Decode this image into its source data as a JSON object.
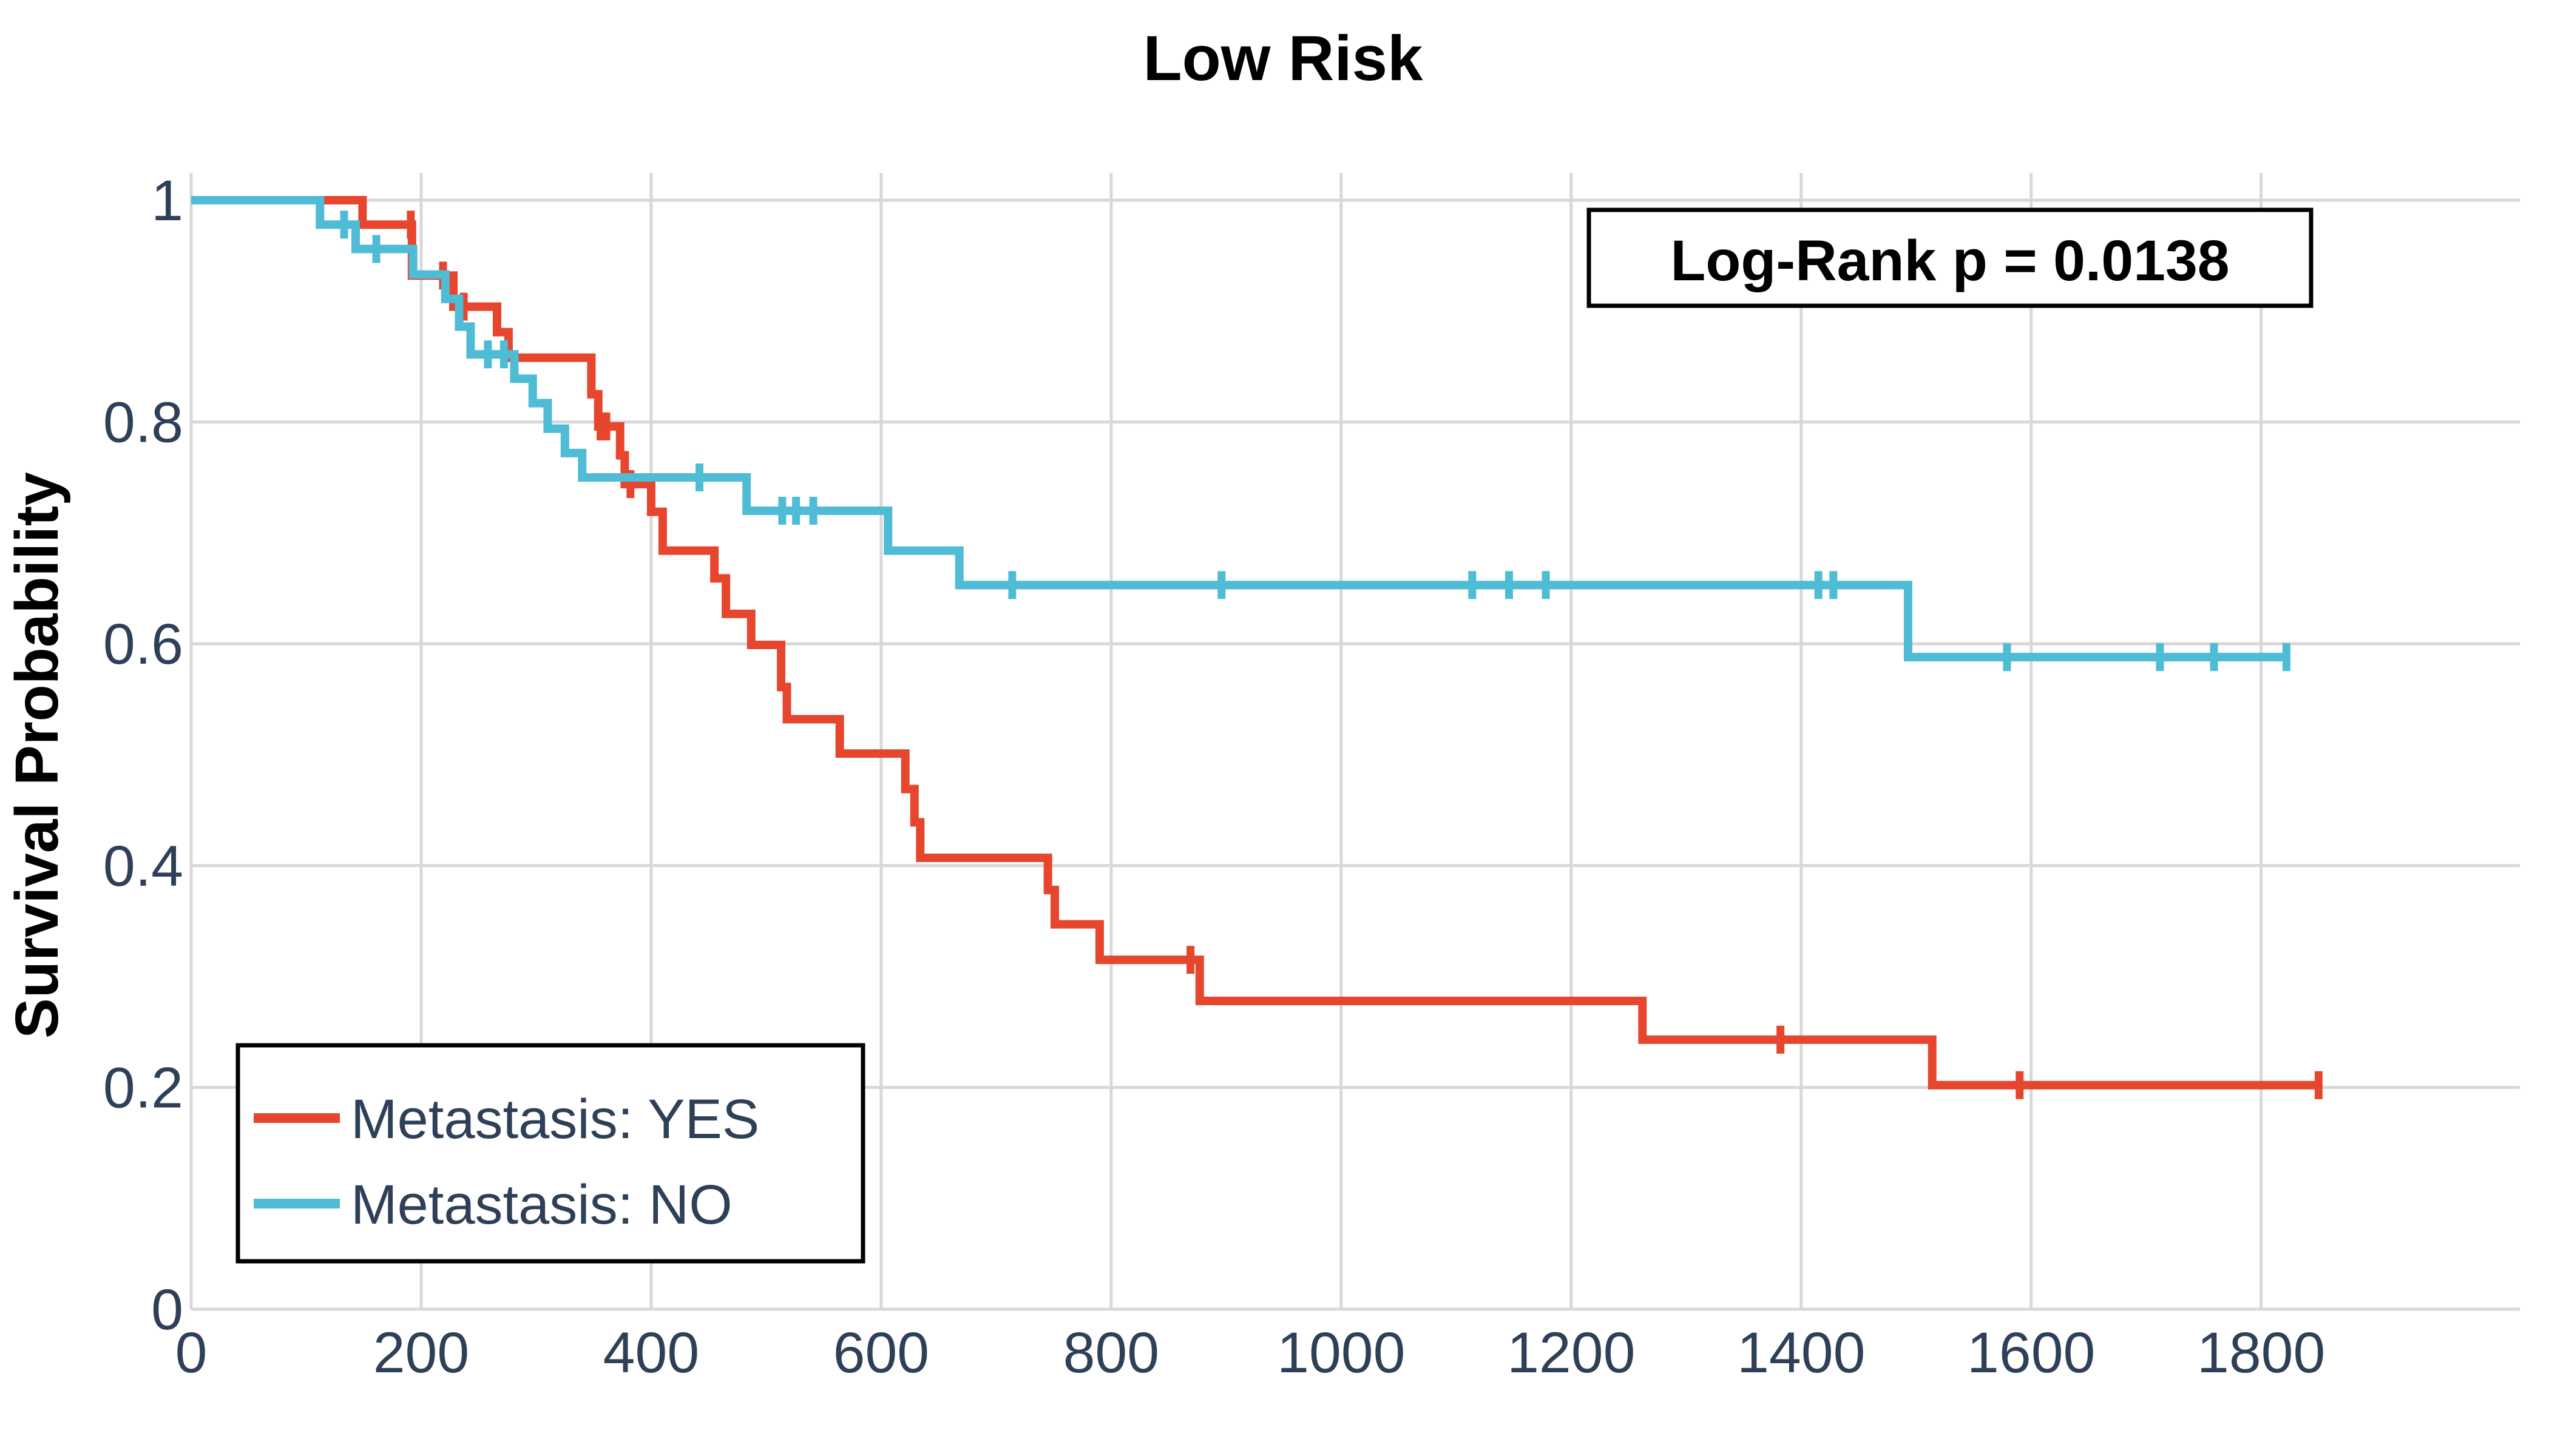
{
  "chart_data": {
    "type": "line",
    "subtype": "kaplan_meier_step_survival",
    "title": "Low Risk",
    "xlabel": "",
    "ylabel": "Survival Probability",
    "annotation": "Log-Rank p = 0.0138",
    "grid": true,
    "legend_position": "lower-left",
    "xlim": [
      0,
      2025
    ],
    "ylim": [
      0,
      1
    ],
    "xticks": [
      {
        "v": 0,
        "label": "0"
      },
      {
        "v": 200,
        "label": "200"
      },
      {
        "v": 400,
        "label": "400"
      },
      {
        "v": 600,
        "label": "600"
      },
      {
        "v": 800,
        "label": "800"
      },
      {
        "v": 1000,
        "label": "1000"
      },
      {
        "v": 1200,
        "label": "1200"
      },
      {
        "v": 1400,
        "label": "1400"
      },
      {
        "v": 1600,
        "label": "1600"
      },
      {
        "v": 1800,
        "label": "1800"
      }
    ],
    "yticks": [
      {
        "v": 1,
        "label": "1"
      },
      {
        "v": 0.8,
        "label": "0.8"
      },
      {
        "v": 0.6,
        "label": "0.6"
      },
      {
        "v": 0.4,
        "label": "0.4"
      },
      {
        "v": 0.2,
        "label": "0.2"
      },
      {
        "v": 0,
        "label": "0"
      }
    ],
    "series": [
      {
        "name": "Metastasis: YES",
        "color": "#E6462D",
        "end_time": 1850,
        "steps": [
          [
            0,
            1.0
          ],
          [
            149,
            0.978
          ],
          [
            192,
            0.932
          ],
          [
            228,
            0.904
          ],
          [
            266,
            0.881
          ],
          [
            276,
            0.858
          ],
          [
            348,
            0.825
          ],
          [
            354,
            0.796
          ],
          [
            373,
            0.77
          ],
          [
            377,
            0.744
          ],
          [
            400,
            0.719
          ],
          [
            410,
            0.684
          ],
          [
            455,
            0.659
          ],
          [
            465,
            0.627
          ],
          [
            487,
            0.599
          ],
          [
            513,
            0.561
          ],
          [
            518,
            0.532
          ],
          [
            564,
            0.501
          ],
          [
            621,
            0.469
          ],
          [
            629,
            0.439
          ],
          [
            634,
            0.407
          ],
          [
            745,
            0.378
          ],
          [
            751,
            0.347
          ],
          [
            790,
            0.315
          ],
          [
            877,
            0.278
          ],
          [
            1262,
            0.243
          ],
          [
            1514,
            0.202
          ]
        ],
        "censor_times": [
          191,
          219,
          237,
          356,
          361,
          382,
          869,
          1382,
          1590,
          1850
        ]
      },
      {
        "name": "Metastasis: NO",
        "color": "#4DBCD4",
        "end_time": 1822,
        "steps": [
          [
            0,
            1.0
          ],
          [
            112,
            0.978
          ],
          [
            143,
            0.956
          ],
          [
            193,
            0.933
          ],
          [
            221,
            0.911
          ],
          [
            233,
            0.886
          ],
          [
            243,
            0.861
          ],
          [
            281,
            0.839
          ],
          [
            297,
            0.817
          ],
          [
            310,
            0.794
          ],
          [
            325,
            0.772
          ],
          [
            340,
            0.75
          ],
          [
            483,
            0.72
          ],
          [
            606,
            0.684
          ],
          [
            668,
            0.653
          ],
          [
            1493,
            0.588
          ]
        ],
        "censor_times": [
          133,
          161,
          258,
          272,
          442,
          514,
          526,
          541,
          714,
          896,
          1114,
          1146,
          1178,
          1415,
          1428,
          1579,
          1712,
          1759,
          1822
        ]
      }
    ],
    "colors": {
      "text_tick": "#2E4057",
      "grid": "#D8D8D8",
      "background": "#FFFFFF",
      "box_border": "#000000"
    }
  }
}
